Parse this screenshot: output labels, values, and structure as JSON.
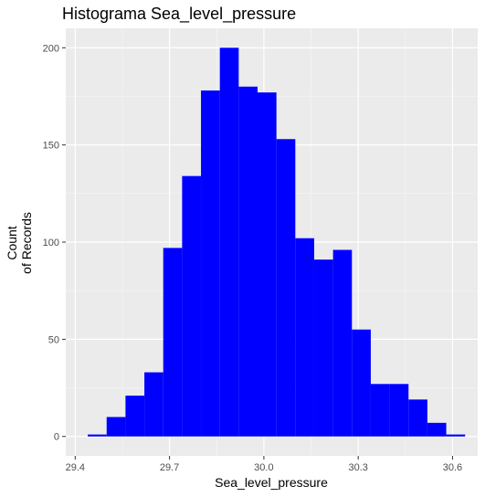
{
  "chart_data": {
    "type": "bar",
    "title": "Histograma Sea_level_pressure",
    "xlabel": "Sea_level_pressure",
    "ylabel_lines": [
      "Count",
      "of Records"
    ],
    "x_ticks": [
      29.4,
      29.7,
      30.0,
      30.3,
      30.6
    ],
    "x_tick_labels": [
      "29.4",
      "29.7",
      "30.0",
      "30.3",
      "30.6"
    ],
    "y_ticks": [
      0,
      50,
      100,
      150,
      200
    ],
    "y_tick_labels": [
      "0",
      "50",
      "100",
      "150",
      "200"
    ],
    "xlim": [
      29.37,
      30.68
    ],
    "ylim": [
      -10,
      210
    ],
    "grid": true,
    "bar_color": "#0000ff",
    "panel_color": "#ebebeb",
    "bins": [
      {
        "x0": 29.44,
        "x1": 29.5,
        "count": 1
      },
      {
        "x0": 29.5,
        "x1": 29.56,
        "count": 10
      },
      {
        "x0": 29.56,
        "x1": 29.62,
        "count": 21
      },
      {
        "x0": 29.62,
        "x1": 29.68,
        "count": 33
      },
      {
        "x0": 29.68,
        "x1": 29.74,
        "count": 97
      },
      {
        "x0": 29.74,
        "x1": 29.8,
        "count": 134
      },
      {
        "x0": 29.8,
        "x1": 29.86,
        "count": 178
      },
      {
        "x0": 29.86,
        "x1": 29.92,
        "count": 200
      },
      {
        "x0": 29.92,
        "x1": 29.98,
        "count": 180
      },
      {
        "x0": 29.98,
        "x1": 30.04,
        "count": 177
      },
      {
        "x0": 30.04,
        "x1": 30.1,
        "count": 153
      },
      {
        "x0": 30.1,
        "x1": 30.16,
        "count": 102
      },
      {
        "x0": 30.16,
        "x1": 30.22,
        "count": 91
      },
      {
        "x0": 30.22,
        "x1": 30.28,
        "count": 96
      },
      {
        "x0": 30.28,
        "x1": 30.34,
        "count": 55
      },
      {
        "x0": 30.34,
        "x1": 30.4,
        "count": 27
      },
      {
        "x0": 30.4,
        "x1": 30.46,
        "count": 27
      },
      {
        "x0": 30.46,
        "x1": 30.52,
        "count": 19
      },
      {
        "x0": 30.52,
        "x1": 30.58,
        "count": 7
      },
      {
        "x0": 30.58,
        "x1": 30.64,
        "count": 1
      }
    ]
  }
}
